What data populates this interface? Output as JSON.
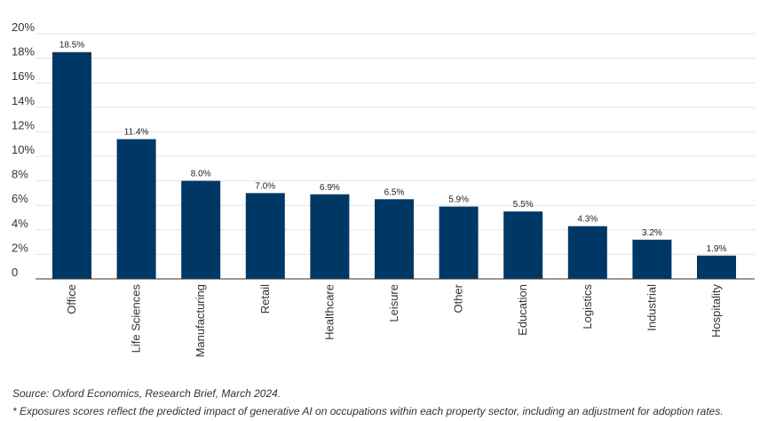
{
  "chart_data": {
    "type": "bar",
    "categories": [
      "Office",
      "Life Sciences",
      "Manufacturing",
      "Retail",
      "Healthcare",
      "Leisure",
      "Other",
      "Education",
      "Logistics",
      "Industrial",
      "Hospitality"
    ],
    "values": [
      18.5,
      11.4,
      8.0,
      7.0,
      6.9,
      6.5,
      5.9,
      5.5,
      4.3,
      3.2,
      1.9
    ],
    "value_labels": [
      "18.5%",
      "11.4%",
      "8.0%",
      "7.0%",
      "6.9%",
      "6.5%",
      "5.9%",
      "5.5%",
      "4.3%",
      "3.2%",
      "1.9%"
    ],
    "y_ticks": [
      0,
      2,
      4,
      6,
      8,
      10,
      12,
      14,
      16,
      18,
      20
    ],
    "y_tick_labels": [
      "0",
      "2%",
      "4%",
      "6%",
      "8%",
      "10%",
      "12%",
      "14%",
      "16%",
      "18%",
      "20%"
    ],
    "ylim": [
      0,
      20
    ],
    "grid": true,
    "title": "",
    "xlabel": "",
    "ylabel": ""
  },
  "colors": {
    "bar": "#003865",
    "grid": "#e3e3e3",
    "axis": "#333333"
  },
  "notes": {
    "source": "Source: Oxford Economics, Research Brief, March 2024.",
    "footnote": "* Exposures scores reflect the predicted impact of generative AI on occupations within each property sector, including an adjustment for adoption rates."
  }
}
